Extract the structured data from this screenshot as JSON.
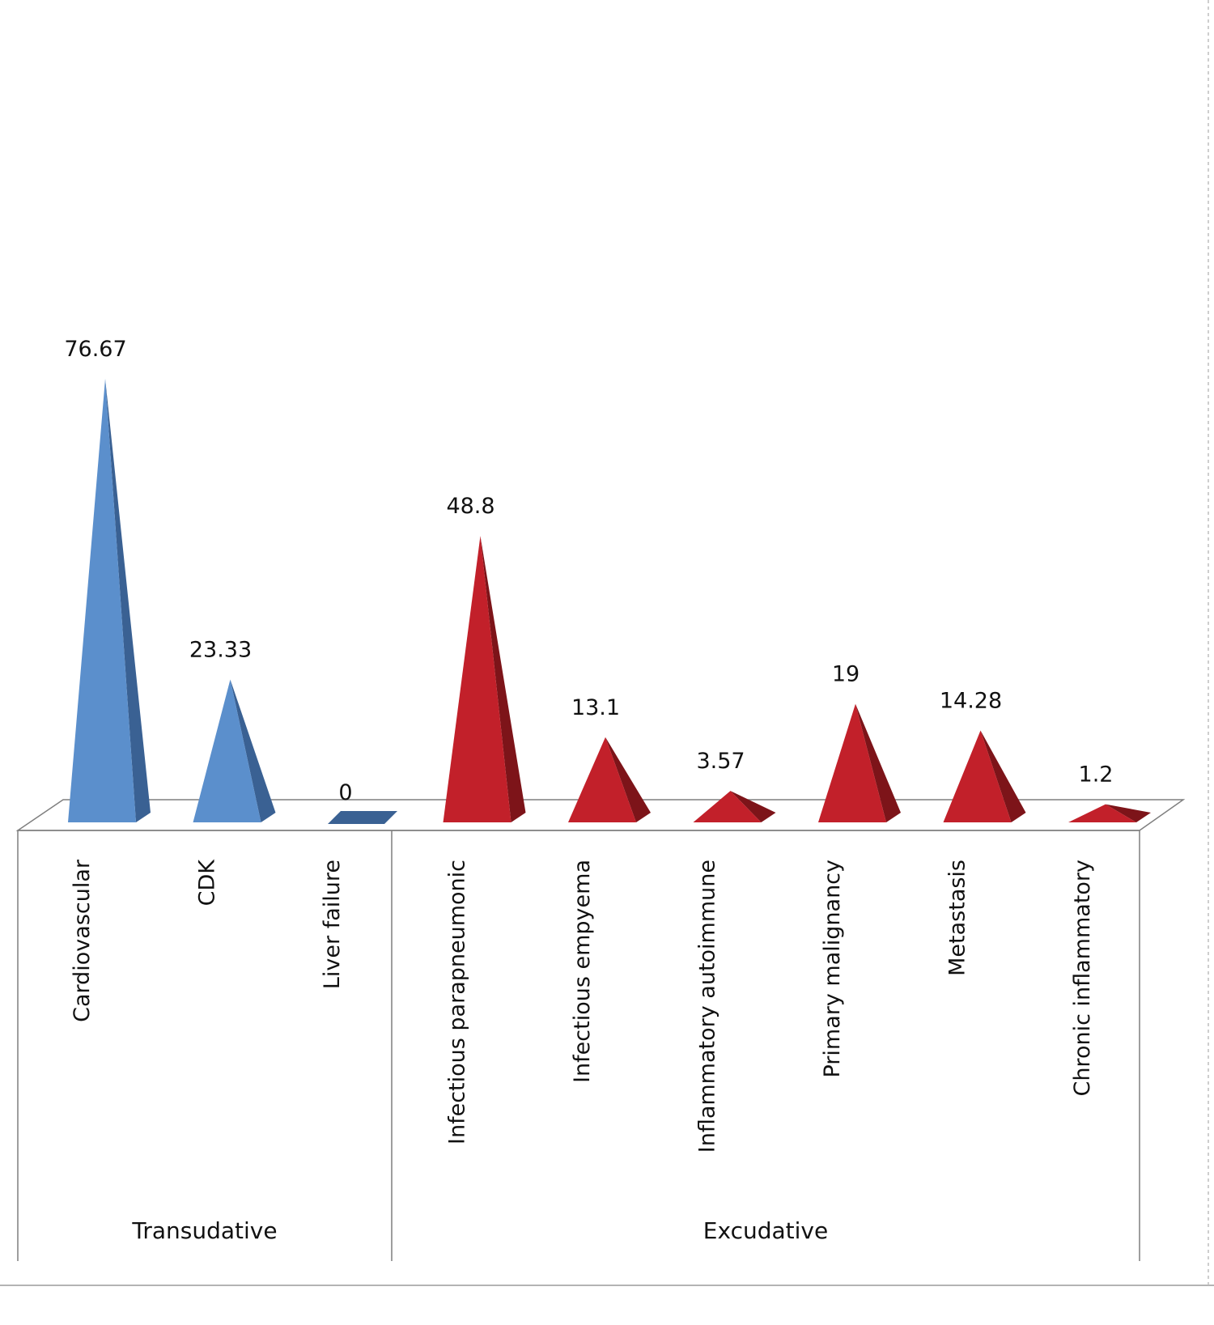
{
  "chart_data": {
    "type": "bar",
    "shape": "pyramid",
    "title": "",
    "xlabel": "",
    "ylabel": "",
    "ylim": [
      0,
      78
    ],
    "grid": false,
    "legend": "none",
    "categories": [
      "Cardiovascular",
      "CDK",
      "Liver failure",
      "Infectious parapneumonic",
      "Infectious empyema",
      "Inflammatory autoimmune",
      "Primary malignancy",
      "Metastasis",
      "Chronic inflammatory"
    ],
    "values": [
      76.67,
      23.33,
      0,
      48.8,
      13.1,
      3.57,
      19,
      14.28,
      1.2
    ],
    "value_labels": [
      "76.67",
      "23.33",
      "0",
      "48.8",
      "13.1",
      "3.57",
      "19",
      "14.28",
      "1.2"
    ],
    "groups": [
      {
        "name": "Transudative",
        "categories": [
          "Cardiovascular",
          "CDK",
          "Liver failure"
        ]
      },
      {
        "name": "Excudative",
        "categories": [
          "Infectious parapneumonic",
          "Infectious empyema",
          "Inflammatory autoimmune",
          "Primary malignancy",
          "Metastasis",
          "Chronic inflammatory"
        ]
      }
    ],
    "group_colors": {
      "Transudative": {
        "front": "#5b8fcc",
        "side": "#3a6193"
      },
      "Excudative": {
        "front": "#c2202a",
        "side": "#7d1419"
      }
    }
  }
}
